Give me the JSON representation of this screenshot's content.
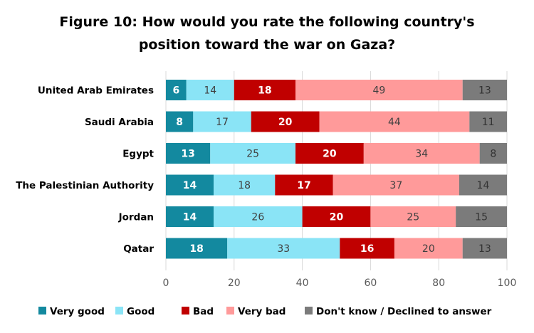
{
  "title_line1": "Figure 10: How would you rate the following country's",
  "title_line2": "position toward the war on Gaza?",
  "chart_data": {
    "type": "bar",
    "orientation": "horizontal",
    "stacked": true,
    "categories": [
      "United Arab Emirates",
      "Saudi Arabia",
      "Egypt",
      "The Palestinian Authority",
      "Jordan",
      "Qatar"
    ],
    "series": [
      {
        "name": "Very good",
        "color": "#13899f",
        "label_color": "#ffffff",
        "label_bold": true,
        "values": [
          6,
          8,
          13,
          14,
          14,
          18
        ]
      },
      {
        "name": "Good",
        "color": "#8ae4f6",
        "label_color": "#404040",
        "label_bold": false,
        "values": [
          14,
          17,
          25,
          18,
          26,
          33
        ]
      },
      {
        "name": "Bad",
        "color": "#c00000",
        "label_color": "#ffffff",
        "label_bold": true,
        "values": [
          18,
          20,
          20,
          17,
          20,
          16
        ]
      },
      {
        "name": "Very bad",
        "color": "#ff9a9a",
        "label_color": "#404040",
        "label_bold": false,
        "values": [
          49,
          44,
          34,
          37,
          25,
          20
        ]
      },
      {
        "name": "Don't know / Declined to answer",
        "color": "#7b7b7b",
        "label_color": "#333333",
        "label_bold": false,
        "values": [
          13,
          11,
          8,
          14,
          15,
          13
        ]
      }
    ],
    "xlim": [
      0,
      100
    ],
    "xticks": [
      0,
      20,
      40,
      60,
      80,
      100
    ],
    "grid": true,
    "legend_position": "bottom"
  }
}
